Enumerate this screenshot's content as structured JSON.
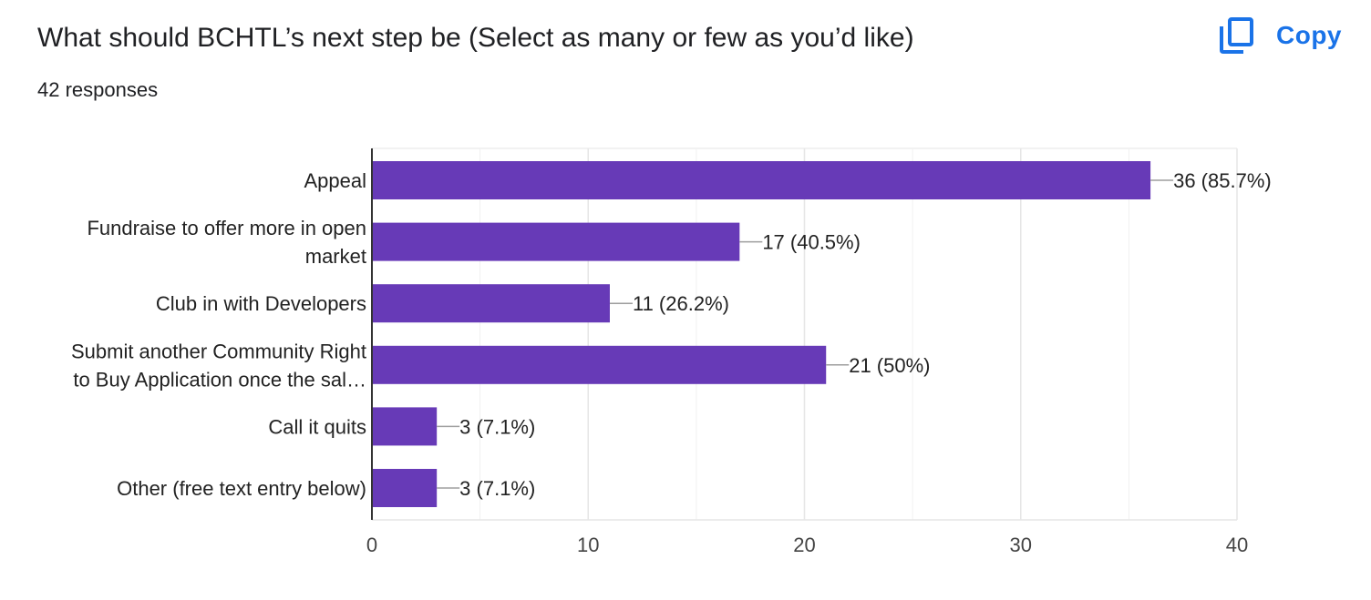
{
  "header": {
    "title": "What should BCHTL’s next step be (Select as many or few as you’d like)",
    "responses": "42 responses",
    "copy_label": "Copy"
  },
  "icons": {
    "copy": "copy-icon"
  },
  "colors": {
    "bar": "#673ab7",
    "accent": "#1a73e8",
    "grid": "#e6e6e6",
    "axis": "#333333"
  },
  "chart_data": {
    "type": "bar",
    "orientation": "horizontal",
    "categories": [
      [
        "Appeal"
      ],
      [
        "Fundraise to offer more in open",
        "market"
      ],
      [
        "Club in with Developers"
      ],
      [
        "Submit another Community Right",
        "to Buy Application once the sal…"
      ],
      [
        "Call it quits"
      ],
      [
        "Other (free text entry below)"
      ]
    ],
    "values": [
      36,
      17,
      11,
      21,
      3,
      3
    ],
    "value_labels": [
      "36 (85.7%)",
      "17 (40.5%)",
      "11 (26.2%)",
      "21 (50%)",
      "3 (7.1%)",
      "3 (7.1%)"
    ],
    "xlim": [
      0,
      40
    ],
    "xticks": [
      0,
      10,
      20,
      30,
      40
    ],
    "minor_gridlines": [
      5,
      15,
      25,
      35
    ],
    "grid": true,
    "xlabel": "",
    "ylabel": ""
  }
}
